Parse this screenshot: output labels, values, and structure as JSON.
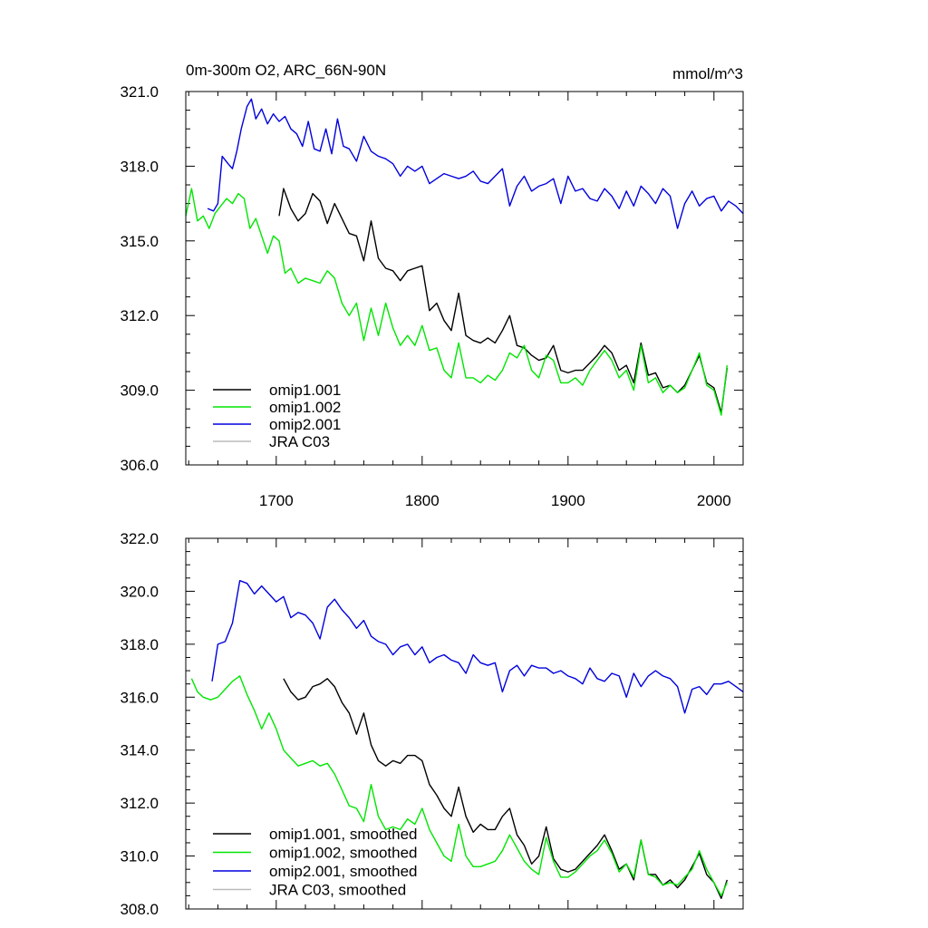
{
  "chart_data": [
    {
      "type": "line",
      "title": "0m-300m O2, ARC_66N-90N",
      "units": "mmol/m^3",
      "xlim": [
        1638,
        2020
      ],
      "ylim": [
        306,
        321
      ],
      "xticks": [
        1700,
        1800,
        1900,
        2000
      ],
      "xtick_labels": [
        "1700",
        "1800",
        "1900",
        "2000"
      ],
      "yticks": [
        306,
        309,
        312,
        315,
        318,
        321
      ],
      "ytick_labels": [
        "306.0",
        "309.0",
        "312.0",
        "315.0",
        "318.0",
        "321.0"
      ],
      "legend_position": "bottom-left",
      "series": [
        {
          "name": "omip1.001",
          "color": "#000000",
          "x": [
            1702,
            1705,
            1710,
            1715,
            1720,
            1725,
            1730,
            1735,
            1740,
            1745,
            1750,
            1755,
            1760,
            1765,
            1770,
            1775,
            1780,
            1785,
            1790,
            1795,
            1800,
            1805,
            1810,
            1815,
            1820,
            1825,
            1830,
            1835,
            1840,
            1845,
            1850,
            1855,
            1860,
            1865,
            1870,
            1875,
            1880,
            1885,
            1890,
            1895,
            1900,
            1905,
            1910,
            1915,
            1920,
            1925,
            1930,
            1935,
            1940,
            1945,
            1950,
            1955,
            1960,
            1965,
            1970,
            1975,
            1980,
            1985,
            1990,
            1995,
            2000,
            2005,
            2009
          ],
          "y": [
            316.0,
            317.1,
            316.3,
            315.8,
            316.1,
            316.9,
            316.6,
            315.7,
            316.5,
            315.9,
            315.3,
            315.2,
            314.2,
            315.8,
            314.3,
            313.9,
            313.8,
            313.4,
            313.8,
            313.9,
            314.0,
            312.2,
            312.5,
            311.8,
            311.4,
            312.9,
            311.2,
            311.0,
            310.9,
            311.1,
            310.9,
            311.4,
            312.0,
            310.8,
            310.7,
            310.4,
            310.2,
            310.3,
            310.8,
            309.8,
            309.7,
            309.8,
            309.8,
            310.1,
            310.4,
            310.8,
            310.5,
            309.8,
            310.0,
            309.3,
            310.9,
            309.6,
            309.7,
            309.1,
            309.2,
            308.9,
            309.2,
            309.8,
            310.4,
            309.3,
            309.1,
            308.1,
            309.9
          ]
        },
        {
          "name": "omip1.002",
          "color": "#00e600",
          "x": [
            1638,
            1642,
            1646,
            1650,
            1654,
            1658,
            1662,
            1666,
            1670,
            1674,
            1678,
            1682,
            1686,
            1690,
            1694,
            1698,
            1702,
            1706,
            1710,
            1715,
            1720,
            1725,
            1730,
            1735,
            1740,
            1745,
            1750,
            1755,
            1760,
            1765,
            1770,
            1775,
            1780,
            1785,
            1790,
            1795,
            1800,
            1805,
            1810,
            1815,
            1820,
            1825,
            1830,
            1835,
            1840,
            1845,
            1850,
            1855,
            1860,
            1865,
            1870,
            1875,
            1880,
            1885,
            1890,
            1895,
            1900,
            1905,
            1910,
            1915,
            1920,
            1925,
            1930,
            1935,
            1940,
            1945,
            1950,
            1955,
            1960,
            1965,
            1970,
            1975,
            1980,
            1985,
            1990,
            1995,
            2000,
            2005,
            2009
          ],
          "y": [
            316.0,
            317.1,
            315.8,
            316.0,
            315.5,
            316.1,
            316.4,
            316.7,
            316.5,
            316.9,
            316.7,
            315.5,
            315.9,
            315.2,
            314.5,
            315.2,
            315.0,
            313.7,
            313.9,
            313.3,
            313.5,
            313.4,
            313.3,
            313.8,
            313.5,
            312.5,
            312.0,
            312.5,
            311.0,
            312.3,
            311.2,
            312.5,
            311.5,
            310.8,
            311.2,
            310.8,
            311.6,
            310.6,
            310.7,
            309.8,
            309.5,
            310.9,
            309.5,
            309.5,
            309.3,
            309.6,
            309.4,
            309.8,
            310.5,
            310.3,
            310.8,
            309.8,
            309.5,
            310.4,
            310.2,
            309.3,
            309.3,
            309.5,
            309.2,
            309.8,
            310.2,
            310.6,
            310.2,
            309.5,
            309.8,
            309.0,
            310.8,
            309.3,
            309.5,
            308.9,
            309.2,
            308.9,
            309.1,
            309.8,
            310.5,
            309.2,
            309.0,
            308.0,
            310.0
          ]
        },
        {
          "name": "omip2.001",
          "color": "#0000dd",
          "x": [
            1653,
            1657,
            1660,
            1663,
            1667,
            1670,
            1673,
            1676,
            1680,
            1683,
            1686,
            1690,
            1694,
            1698,
            1702,
            1706,
            1710,
            1714,
            1718,
            1722,
            1726,
            1730,
            1734,
            1738,
            1742,
            1746,
            1750,
            1755,
            1760,
            1765,
            1770,
            1775,
            1780,
            1785,
            1790,
            1795,
            1800,
            1805,
            1810,
            1815,
            1820,
            1825,
            1830,
            1835,
            1840,
            1845,
            1850,
            1855,
            1860,
            1865,
            1870,
            1875,
            1880,
            1885,
            1890,
            1895,
            1900,
            1905,
            1910,
            1915,
            1920,
            1925,
            1930,
            1935,
            1940,
            1945,
            1950,
            1955,
            1960,
            1965,
            1970,
            1975,
            1980,
            1985,
            1990,
            1995,
            2000,
            2005,
            2010,
            2015,
            2020
          ],
          "y": [
            316.3,
            316.2,
            316.5,
            318.4,
            318.1,
            317.9,
            318.6,
            319.5,
            320.4,
            320.7,
            319.9,
            320.3,
            319.7,
            320.1,
            319.8,
            320.0,
            319.5,
            319.3,
            318.8,
            319.8,
            318.7,
            318.6,
            319.5,
            318.5,
            319.9,
            318.8,
            318.7,
            318.2,
            319.2,
            318.6,
            318.4,
            318.3,
            318.1,
            317.6,
            318.0,
            317.8,
            318.0,
            317.3,
            317.5,
            317.7,
            317.6,
            317.5,
            317.6,
            317.8,
            317.4,
            317.3,
            317.6,
            317.9,
            316.4,
            317.2,
            317.6,
            317.0,
            317.2,
            317.3,
            317.5,
            316.5,
            317.6,
            317.0,
            317.1,
            316.7,
            316.6,
            317.1,
            316.8,
            316.3,
            317.0,
            316.4,
            317.2,
            316.9,
            316.5,
            317.1,
            316.8,
            315.5,
            316.5,
            317.0,
            316.4,
            316.7,
            316.8,
            316.2,
            316.6,
            316.4,
            316.1
          ]
        },
        {
          "name": "JRA C03",
          "color": "#bbbbbb",
          "x": [],
          "y": []
        }
      ]
    },
    {
      "type": "line",
      "title": "",
      "xlim": [
        1638,
        2020
      ],
      "ylim": [
        308,
        322
      ],
      "xticks": [
        1700,
        1800,
        1900,
        2000
      ],
      "yticks": [
        308,
        310,
        312,
        314,
        316,
        318,
        320,
        322
      ],
      "ytick_labels": [
        "308.0",
        "310.0",
        "312.0",
        "314.0",
        "316.0",
        "318.0",
        "320.0",
        "322.0"
      ],
      "legend_position": "bottom-left",
      "series": [
        {
          "name": "omip1.001, smoothed",
          "color": "#000000",
          "x": [
            1705,
            1710,
            1715,
            1720,
            1725,
            1730,
            1735,
            1740,
            1745,
            1750,
            1755,
            1760,
            1765,
            1770,
            1775,
            1780,
            1785,
            1790,
            1795,
            1800,
            1805,
            1810,
            1815,
            1820,
            1825,
            1830,
            1835,
            1840,
            1845,
            1850,
            1855,
            1860,
            1865,
            1870,
            1875,
            1880,
            1885,
            1890,
            1895,
            1900,
            1905,
            1910,
            1915,
            1920,
            1925,
            1930,
            1935,
            1940,
            1945,
            1950,
            1955,
            1960,
            1965,
            1970,
            1975,
            1980,
            1985,
            1990,
            1995,
            2000,
            2005,
            2009
          ],
          "y": [
            316.7,
            316.2,
            315.9,
            316.0,
            316.4,
            316.5,
            316.7,
            316.4,
            315.8,
            315.4,
            314.6,
            315.4,
            314.2,
            313.6,
            313.4,
            313.6,
            313.5,
            313.8,
            313.8,
            313.6,
            312.7,
            312.3,
            311.8,
            311.5,
            312.6,
            311.5,
            310.9,
            311.2,
            311.0,
            311.0,
            311.5,
            311.8,
            310.8,
            310.4,
            309.7,
            310.0,
            311.1,
            309.9,
            309.5,
            309.4,
            309.5,
            309.8,
            310.1,
            310.4,
            310.8,
            310.2,
            309.5,
            309.7,
            309.1,
            310.6,
            309.3,
            309.3,
            308.9,
            309.1,
            308.8,
            309.1,
            309.6,
            310.1,
            309.3,
            309.0,
            308.4,
            309.1
          ]
        },
        {
          "name": "omip1.002, smoothed",
          "color": "#00e600",
          "x": [
            1642,
            1646,
            1650,
            1655,
            1660,
            1665,
            1670,
            1675,
            1680,
            1685,
            1690,
            1695,
            1700,
            1705,
            1710,
            1715,
            1720,
            1725,
            1730,
            1735,
            1740,
            1745,
            1750,
            1755,
            1760,
            1765,
            1770,
            1775,
            1780,
            1785,
            1790,
            1795,
            1800,
            1805,
            1810,
            1815,
            1820,
            1825,
            1830,
            1835,
            1840,
            1845,
            1850,
            1855,
            1860,
            1865,
            1870,
            1875,
            1880,
            1885,
            1890,
            1895,
            1900,
            1905,
            1910,
            1915,
            1920,
            1925,
            1930,
            1935,
            1940,
            1945,
            1950,
            1955,
            1960,
            1965,
            1970,
            1975,
            1980,
            1985,
            1990,
            1995,
            2000,
            2005,
            2009
          ],
          "y": [
            316.7,
            316.2,
            316.0,
            315.9,
            316.0,
            316.3,
            316.6,
            316.8,
            316.1,
            315.5,
            314.8,
            315.4,
            314.8,
            314.0,
            313.7,
            313.4,
            313.5,
            313.6,
            313.4,
            313.5,
            313.1,
            312.5,
            311.9,
            311.8,
            311.3,
            312.7,
            311.5,
            311.0,
            311.1,
            311.0,
            311.4,
            311.2,
            311.8,
            311.0,
            310.5,
            310.0,
            309.8,
            311.2,
            310.0,
            309.6,
            309.6,
            309.7,
            309.8,
            310.2,
            310.8,
            310.3,
            309.8,
            309.5,
            309.3,
            310.7,
            309.8,
            309.2,
            309.2,
            309.4,
            309.7,
            310.0,
            310.2,
            310.6,
            310.1,
            309.4,
            309.7,
            309.2,
            310.6,
            309.3,
            309.2,
            308.9,
            309.0,
            308.9,
            309.2,
            309.5,
            310.2,
            309.5,
            309.0,
            308.5,
            309.0
          ]
        },
        {
          "name": "omip2.001, smoothed",
          "color": "#0000dd",
          "x": [
            1656,
            1660,
            1665,
            1670,
            1675,
            1680,
            1685,
            1690,
            1695,
            1700,
            1705,
            1710,
            1715,
            1720,
            1725,
            1730,
            1735,
            1740,
            1745,
            1750,
            1755,
            1760,
            1765,
            1770,
            1775,
            1780,
            1785,
            1790,
            1795,
            1800,
            1805,
            1810,
            1815,
            1820,
            1825,
            1830,
            1835,
            1840,
            1845,
            1850,
            1855,
            1860,
            1865,
            1870,
            1875,
            1880,
            1885,
            1890,
            1895,
            1900,
            1905,
            1910,
            1915,
            1920,
            1925,
            1930,
            1935,
            1940,
            1945,
            1950,
            1955,
            1960,
            1965,
            1970,
            1975,
            1980,
            1985,
            1990,
            1995,
            2000,
            2005,
            2010,
            2015,
            2020
          ],
          "y": [
            316.6,
            318.0,
            318.1,
            318.8,
            320.4,
            320.3,
            319.9,
            320.2,
            319.9,
            319.6,
            319.8,
            319.0,
            319.2,
            319.1,
            318.8,
            318.2,
            319.4,
            319.7,
            319.3,
            319.0,
            318.6,
            318.9,
            318.3,
            318.1,
            318.0,
            317.6,
            317.9,
            318.0,
            317.6,
            317.9,
            317.3,
            317.5,
            317.6,
            317.4,
            317.3,
            316.9,
            317.6,
            317.3,
            317.2,
            317.3,
            316.2,
            317.0,
            317.2,
            316.8,
            317.2,
            317.1,
            317.1,
            316.9,
            317.0,
            316.8,
            316.7,
            316.5,
            317.1,
            316.7,
            316.6,
            316.9,
            316.8,
            316.0,
            316.9,
            316.4,
            316.8,
            317.0,
            316.8,
            316.7,
            316.4,
            315.4,
            316.3,
            316.4,
            316.1,
            316.5,
            316.5,
            316.6,
            316.4,
            316.2
          ]
        },
        {
          "name": "JRA C03, smoothed",
          "color": "#bbbbbb",
          "x": [],
          "y": []
        }
      ]
    }
  ]
}
